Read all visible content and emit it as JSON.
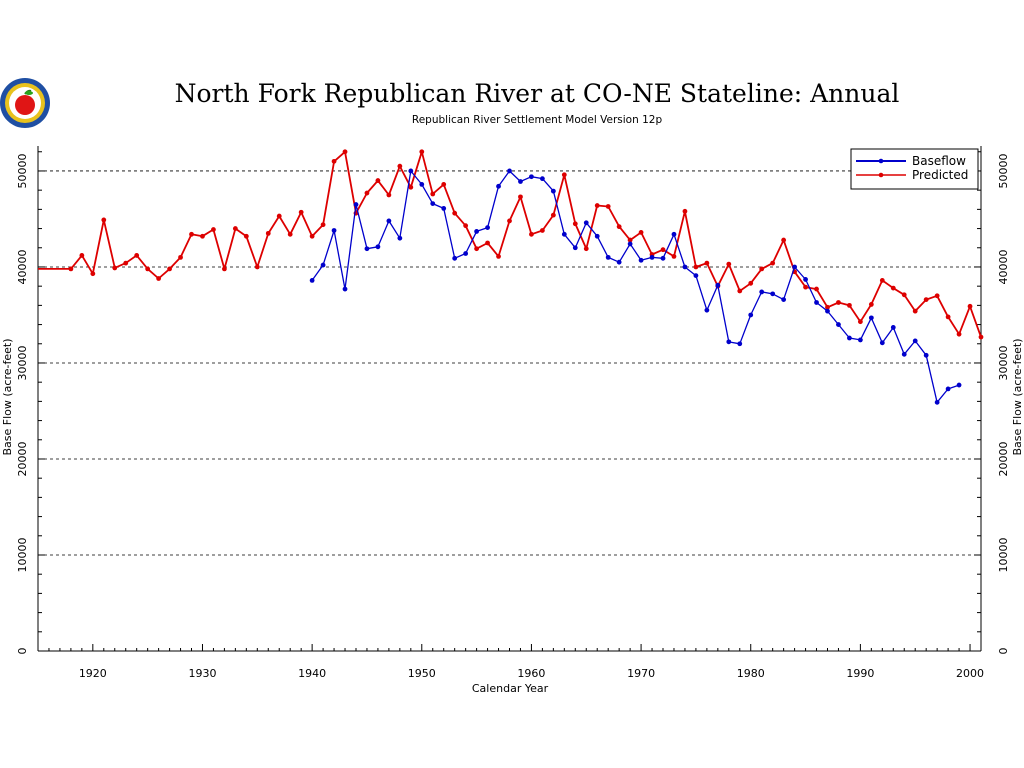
{
  "chart_data": {
    "type": "line",
    "title": "North Fork Republican River at CO-NE Stateline: Annual",
    "subtitle": "Republican River Settlement Model Version 12p",
    "xlabel": "Calendar Year",
    "ylabel": "Base Flow (acre-feet)",
    "ylabel_right": "Base Flow (acre-feet)",
    "xlim": [
      1915,
      2001
    ],
    "ylim": [
      0,
      52600
    ],
    "x_ticks": [
      1920,
      1930,
      1940,
      1950,
      1960,
      1970,
      1980,
      1990,
      2000
    ],
    "x_tick_labels": [
      "1920",
      "1930",
      "1940",
      "1950",
      "1960",
      "1970",
      "1980",
      "1990",
      "2000"
    ],
    "y_ticks": [
      0,
      10000,
      20000,
      30000,
      40000,
      50000
    ],
    "y_tick_labels": [
      "0",
      "10000",
      "20000",
      "30000",
      "40000",
      "50000"
    ],
    "grid": "horizontal dashed at major y ticks",
    "legend_position": "top-right",
    "logo": "seal-icon",
    "series": [
      {
        "name": "Baseflow",
        "color": "#0000cc",
        "x": [
          1940,
          1941,
          1942,
          1943,
          1944,
          1945,
          1946,
          1947,
          1948,
          1949,
          1950,
          1951,
          1952,
          1953,
          1954,
          1955,
          1956,
          1957,
          1958,
          1959,
          1960,
          1961,
          1962,
          1963,
          1964,
          1965,
          1966,
          1967,
          1968,
          1969,
          1970,
          1971,
          1972,
          1973,
          1974,
          1975,
          1976,
          1977,
          1978,
          1979,
          1980,
          1981,
          1982,
          1983,
          1984,
          1985,
          1986,
          1987,
          1988,
          1989,
          1990,
          1991,
          1992,
          1993,
          1994,
          1995,
          1996,
          1997,
          1998,
          1999
        ],
        "values": [
          38600,
          40200,
          43800,
          37700,
          46500,
          41900,
          42100,
          44800,
          43000,
          50000,
          48600,
          46600,
          46100,
          40900,
          41400,
          43700,
          44100,
          48400,
          50000,
          48900,
          49400,
          49200,
          47900,
          43400,
          42000,
          44600,
          43200,
          41000,
          40500,
          42400,
          40700,
          41000,
          40900,
          43400,
          40000,
          39100,
          35500,
          38100,
          32200,
          32000,
          35000,
          37400,
          37200,
          36600,
          40000,
          38700,
          36300,
          35400,
          34000,
          32600,
          32400,
          34700,
          32100,
          33700,
          30900,
          32300,
          30800,
          25900,
          27300,
          27700
        ]
      },
      {
        "name": "Predicted",
        "color": "#dd0000",
        "x": [
          1915,
          1918,
          1919,
          1920,
          1921,
          1922,
          1923,
          1924,
          1925,
          1926,
          1927,
          1928,
          1929,
          1930,
          1931,
          1932,
          1933,
          1934,
          1935,
          1936,
          1937,
          1938,
          1939,
          1940,
          1941,
          1942,
          1943,
          1944,
          1945,
          1946,
          1947,
          1948,
          1949,
          1950,
          1951,
          1952,
          1953,
          1954,
          1955,
          1956,
          1957,
          1958,
          1959,
          1960,
          1961,
          1962,
          1963,
          1964,
          1965,
          1966,
          1967,
          1968,
          1969,
          1970,
          1971,
          1972,
          1973,
          1974,
          1975,
          1976,
          1977,
          1978,
          1979,
          1980,
          1981,
          1982,
          1983,
          1984,
          1985,
          1986,
          1987,
          1988,
          1989,
          1990,
          1991,
          1992,
          1993,
          1994,
          1995,
          1996,
          1997,
          1998,
          1999,
          2000,
          2001
        ],
        "values": [
          39800,
          39800,
          41200,
          39300,
          44900,
          39900,
          40400,
          41200,
          39800,
          38800,
          39800,
          41000,
          43400,
          43200,
          43900,
          39800,
          44000,
          43200,
          40000,
          43500,
          45300,
          43400,
          45700,
          43200,
          44400,
          51000,
          52000,
          45600,
          47700,
          49000,
          47500,
          50500,
          48300,
          52000,
          47600,
          48600,
          45600,
          44300,
          41900,
          42500,
          41100,
          44800,
          47300,
          43400,
          43800,
          45400,
          49600,
          44500,
          41900,
          46400,
          46300,
          44200,
          42800,
          43600,
          41300,
          41800,
          41100,
          45800,
          40000,
          40400,
          38000,
          40300,
          37500,
          38300,
          39800,
          40400,
          42800,
          39500,
          37900,
          37700,
          35800,
          36300,
          36000,
          34300,
          36100,
          38600,
          37800,
          37100,
          35400,
          36600,
          37000,
          34800,
          33000,
          35900,
          32700
        ]
      }
    ]
  }
}
